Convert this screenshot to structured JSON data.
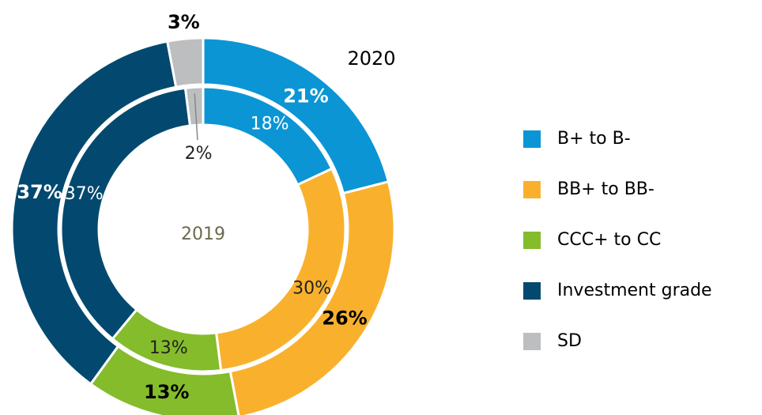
{
  "chart_data": {
    "type": "donut",
    "categories": [
      "B+ to B-",
      "BB+ to BB-",
      "CCC+ to CC",
      "Investment grade",
      "SD"
    ],
    "colors": [
      "#0b95d5",
      "#f9b12d",
      "#84bc2c",
      "#03496f",
      "#bdbec0"
    ],
    "series": [
      {
        "name": "2020",
        "values": [
          21,
          26,
          13,
          37,
          3
        ],
        "value_labels": [
          "21%",
          "26%",
          "13%",
          "37%",
          "3%"
        ]
      },
      {
        "name": "2019",
        "values": [
          18,
          30,
          13,
          37,
          2
        ],
        "value_labels": [
          "18%",
          "30%",
          "13%",
          "37%",
          "2%"
        ]
      }
    ]
  }
}
